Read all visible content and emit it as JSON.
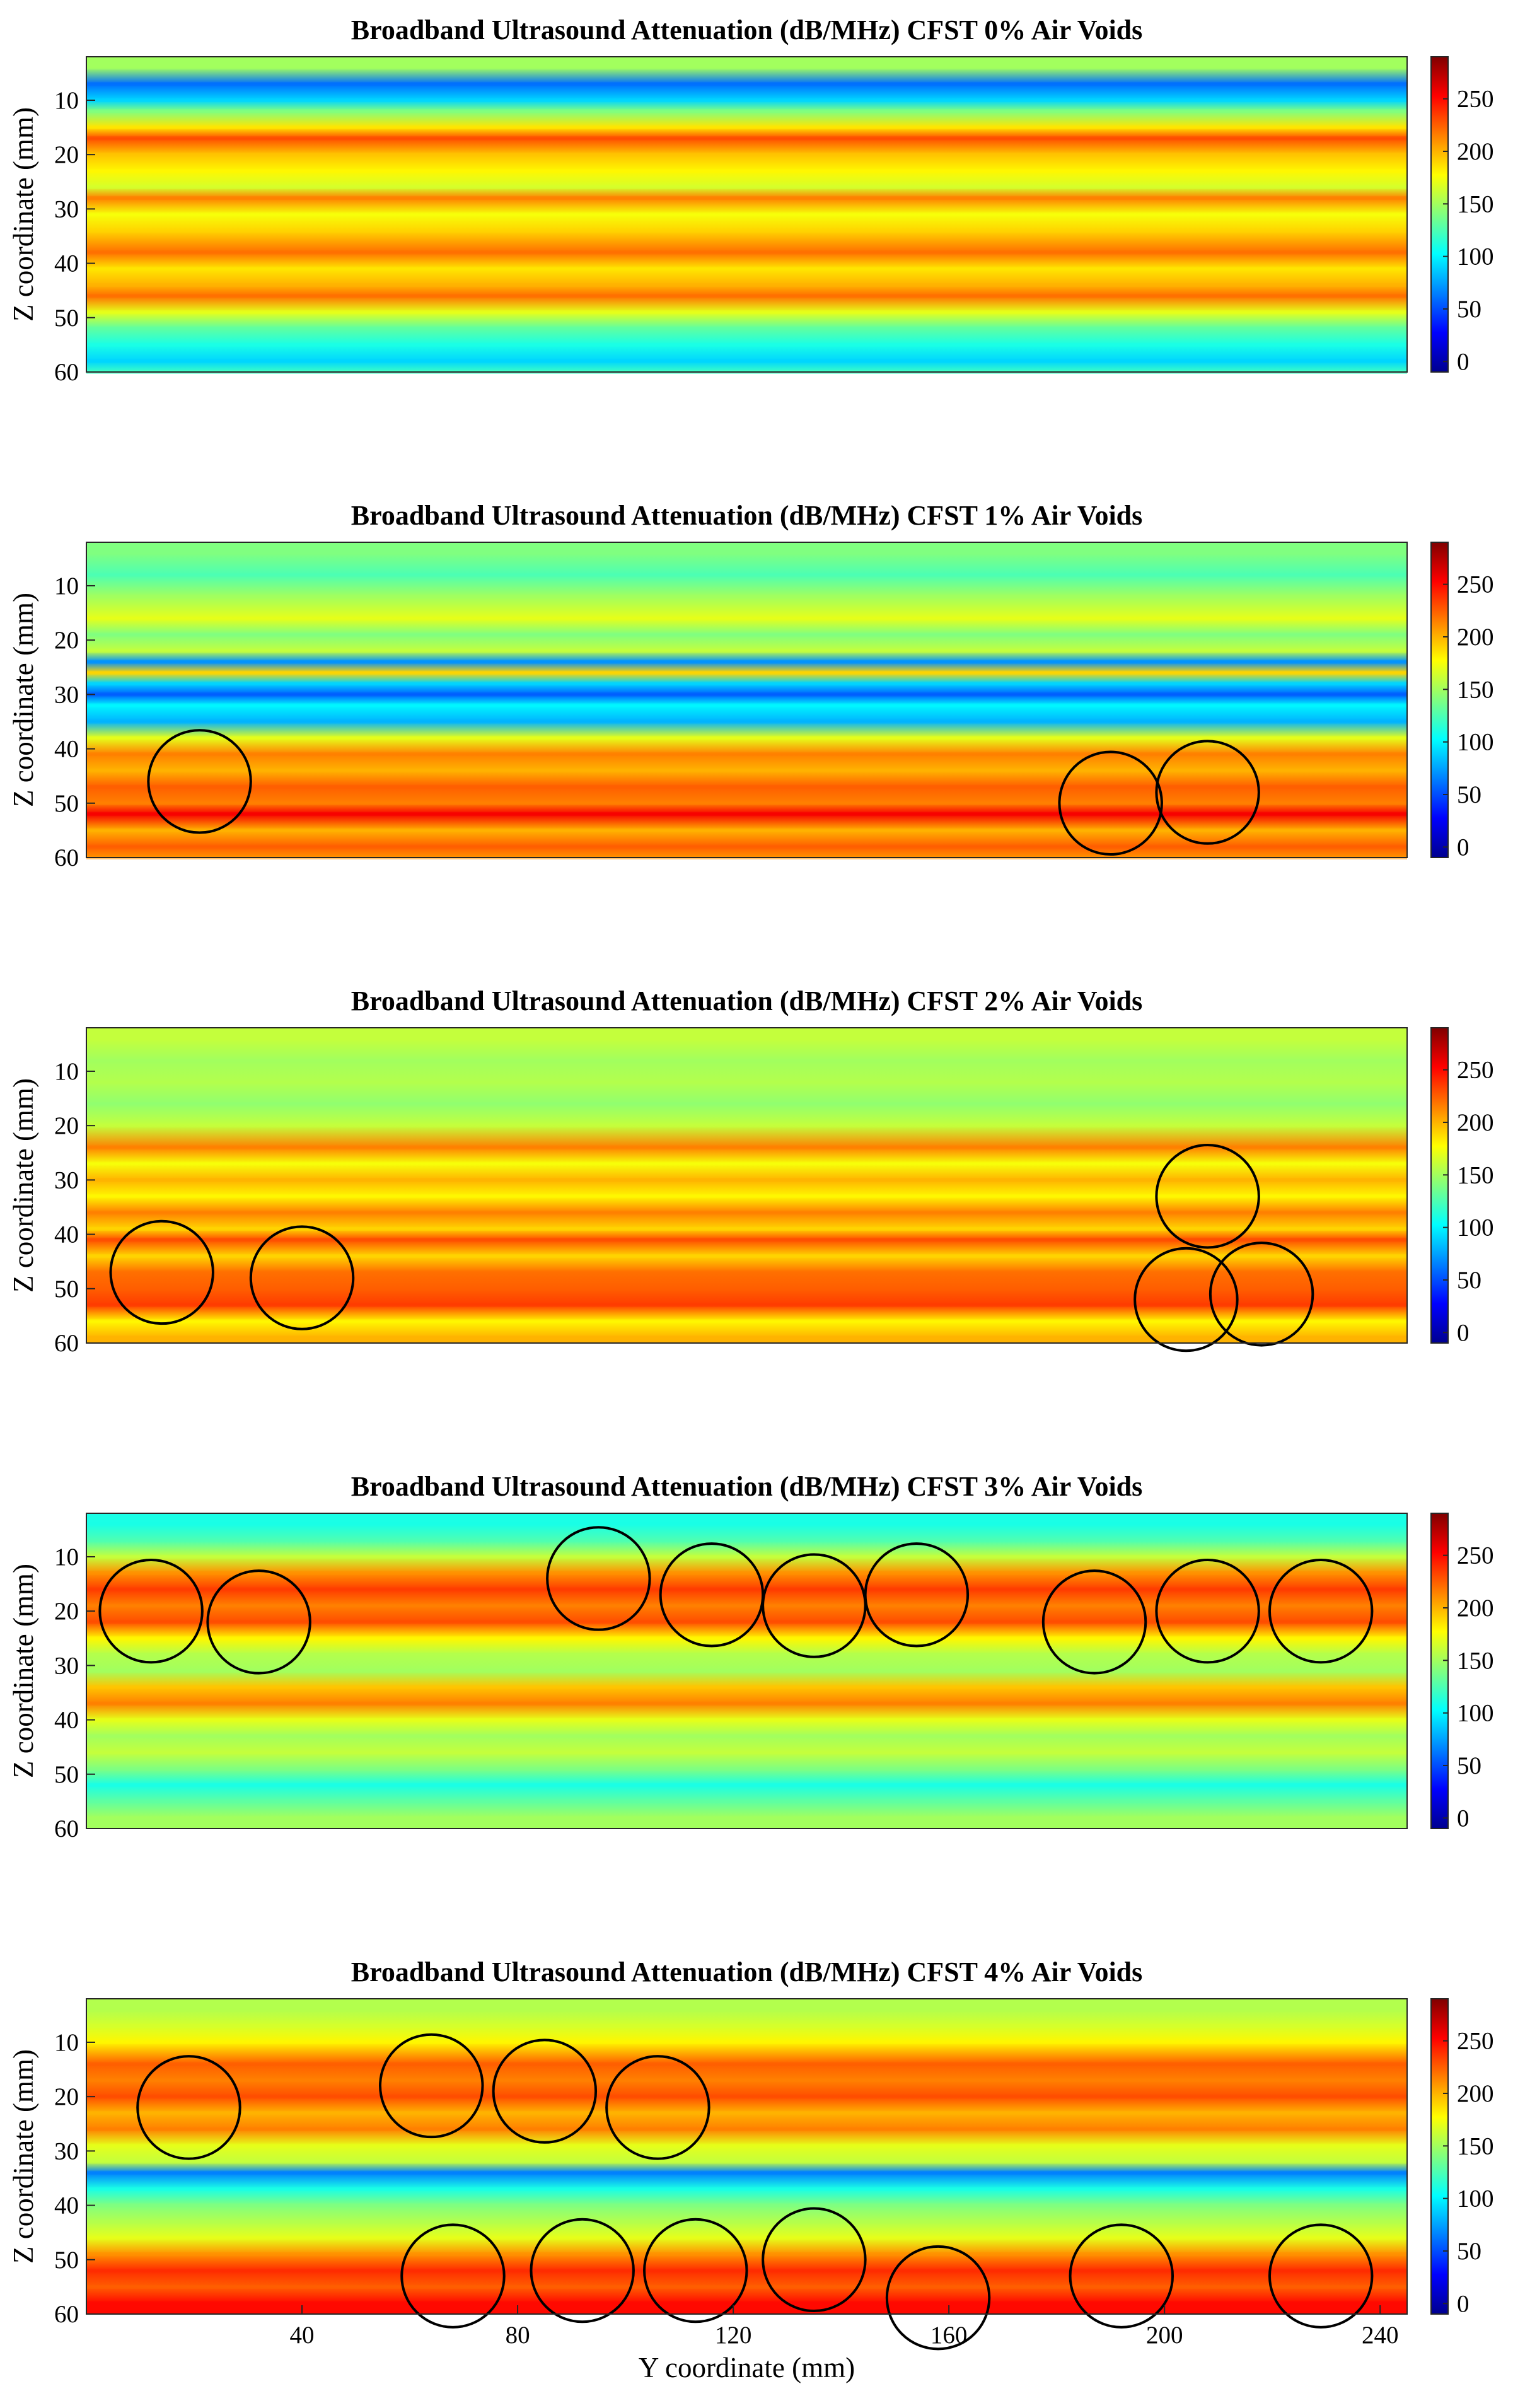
{
  "colormap": [
    "#00008f",
    "#0000ff",
    "#0080ff",
    "#00ffff",
    "#80ff80",
    "#ffff00",
    "#ff8000",
    "#ff0000",
    "#800000"
  ],
  "chart_data": [
    {
      "type": "heatmap",
      "title": "Broadband Ultrasound Attenuation (dB/MHz) CFST 0% Air Voids",
      "xlabel": "",
      "ylabel": "Z coordinate (mm)",
      "xlim": [
        0,
        245
      ],
      "ylim": [
        60,
        2
      ],
      "xticks": [],
      "yticks": [
        10,
        20,
        30,
        40,
        50,
        60
      ],
      "colorbar": {
        "range": [
          -10,
          290
        ],
        "ticks": [
          0,
          50,
          100,
          150,
          200,
          250
        ]
      },
      "bands": [
        {
          "z": 4,
          "value": 150
        },
        {
          "z": 7,
          "value": 60
        },
        {
          "z": 10,
          "value": 90
        },
        {
          "z": 12,
          "value": 140
        },
        {
          "z": 15,
          "value": 185
        },
        {
          "z": 17,
          "value": 230
        },
        {
          "z": 20,
          "value": 195
        },
        {
          "z": 23,
          "value": 180
        },
        {
          "z": 26,
          "value": 165
        },
        {
          "z": 28,
          "value": 215
        },
        {
          "z": 31,
          "value": 175
        },
        {
          "z": 34,
          "value": 190
        },
        {
          "z": 38,
          "value": 220
        },
        {
          "z": 41,
          "value": 185
        },
        {
          "z": 44,
          "value": 200
        },
        {
          "z": 46,
          "value": 220
        },
        {
          "z": 49,
          "value": 170
        },
        {
          "z": 52,
          "value": 130
        },
        {
          "z": 55,
          "value": 110
        },
        {
          "z": 58,
          "value": 90
        },
        {
          "z": 60,
          "value": 120
        }
      ],
      "circles": []
    },
    {
      "type": "heatmap",
      "title": "Broadband Ultrasound Attenuation (dB/MHz) CFST 1% Air Voids",
      "xlabel": "",
      "ylabel": "Z coordinate (mm)",
      "xlim": [
        0,
        245
      ],
      "ylim": [
        60,
        2
      ],
      "xticks": [],
      "yticks": [
        10,
        20,
        30,
        40,
        50,
        60
      ],
      "colorbar": {
        "range": [
          -10,
          290
        ],
        "ticks": [
          0,
          50,
          100,
          150,
          200,
          250
        ]
      },
      "bands": [
        {
          "z": 4,
          "value": 140
        },
        {
          "z": 8,
          "value": 125
        },
        {
          "z": 12,
          "value": 150
        },
        {
          "z": 16,
          "value": 170
        },
        {
          "z": 19,
          "value": 140
        },
        {
          "z": 22,
          "value": 160
        },
        {
          "z": 24,
          "value": 70
        },
        {
          "z": 26,
          "value": 190
        },
        {
          "z": 28,
          "value": 90
        },
        {
          "z": 30,
          "value": 55
        },
        {
          "z": 32,
          "value": 100
        },
        {
          "z": 35,
          "value": 80
        },
        {
          "z": 38,
          "value": 170
        },
        {
          "z": 41,
          "value": 215
        },
        {
          "z": 44,
          "value": 200
        },
        {
          "z": 47,
          "value": 225
        },
        {
          "z": 50,
          "value": 215
        },
        {
          "z": 52,
          "value": 255
        },
        {
          "z": 55,
          "value": 200
        },
        {
          "z": 58,
          "value": 225
        },
        {
          "z": 60,
          "value": 210
        }
      ],
      "circles": [
        {
          "y": 21,
          "z": 46,
          "r": 9.5
        },
        {
          "y": 190,
          "z": 50,
          "r": 9.5
        },
        {
          "y": 208,
          "z": 48,
          "r": 9.5
        }
      ]
    },
    {
      "type": "heatmap",
      "title": "Broadband Ultrasound Attenuation (dB/MHz) CFST 2% Air Voids",
      "xlabel": "",
      "ylabel": "Z coordinate (mm)",
      "xlim": [
        0,
        245
      ],
      "ylim": [
        60,
        2
      ],
      "xticks": [],
      "yticks": [
        10,
        20,
        30,
        40,
        50,
        60
      ],
      "colorbar": {
        "range": [
          -10,
          290
        ],
        "ticks": [
          0,
          50,
          100,
          150,
          200,
          250
        ]
      },
      "bands": [
        {
          "z": 4,
          "value": 160
        },
        {
          "z": 8,
          "value": 150
        },
        {
          "z": 12,
          "value": 155
        },
        {
          "z": 16,
          "value": 145
        },
        {
          "z": 20,
          "value": 160
        },
        {
          "z": 24,
          "value": 215
        },
        {
          "z": 27,
          "value": 175
        },
        {
          "z": 30,
          "value": 200
        },
        {
          "z": 33,
          "value": 180
        },
        {
          "z": 36,
          "value": 215
        },
        {
          "z": 39,
          "value": 190
        },
        {
          "z": 41,
          "value": 230
        },
        {
          "z": 44,
          "value": 190
        },
        {
          "z": 47,
          "value": 220
        },
        {
          "z": 50,
          "value": 225
        },
        {
          "z": 53,
          "value": 235
        },
        {
          "z": 56,
          "value": 180
        },
        {
          "z": 59,
          "value": 200
        }
      ],
      "circles": [
        {
          "y": 14,
          "z": 47,
          "r": 9.5
        },
        {
          "y": 40,
          "z": 48,
          "r": 9.5
        },
        {
          "y": 208,
          "z": 33,
          "r": 9.5
        },
        {
          "y": 204,
          "z": 52,
          "r": 9.5
        },
        {
          "y": 218,
          "z": 51,
          "r": 9.5
        }
      ]
    },
    {
      "type": "heatmap",
      "title": "Broadband Ultrasound Attenuation (dB/MHz) CFST 3% Air Voids",
      "xlabel": "",
      "ylabel": "Z coordinate (mm)",
      "xlim": [
        0,
        245
      ],
      "ylim": [
        60,
        2
      ],
      "xticks": [],
      "yticks": [
        10,
        20,
        30,
        40,
        50,
        60
      ],
      "colorbar": {
        "range": [
          -10,
          290
        ],
        "ticks": [
          0,
          50,
          100,
          150,
          200,
          250
        ]
      },
      "bands": [
        {
          "z": 4,
          "value": 110
        },
        {
          "z": 7,
          "value": 125
        },
        {
          "z": 10,
          "value": 160
        },
        {
          "z": 13,
          "value": 210
        },
        {
          "z": 16,
          "value": 235
        },
        {
          "z": 19,
          "value": 215
        },
        {
          "z": 22,
          "value": 230
        },
        {
          "z": 25,
          "value": 180
        },
        {
          "z": 28,
          "value": 155
        },
        {
          "z": 31,
          "value": 150
        },
        {
          "z": 34,
          "value": 195
        },
        {
          "z": 37,
          "value": 215
        },
        {
          "z": 40,
          "value": 170
        },
        {
          "z": 43,
          "value": 150
        },
        {
          "z": 46,
          "value": 160
        },
        {
          "z": 49,
          "value": 140
        },
        {
          "z": 52,
          "value": 110
        },
        {
          "z": 55,
          "value": 130
        },
        {
          "z": 58,
          "value": 150
        }
      ],
      "circles": [
        {
          "y": 12,
          "z": 20,
          "r": 9.5
        },
        {
          "y": 32,
          "z": 22,
          "r": 9.5
        },
        {
          "y": 95,
          "z": 14,
          "r": 9.5
        },
        {
          "y": 116,
          "z": 17,
          "r": 9.5
        },
        {
          "y": 135,
          "z": 19,
          "r": 9.5
        },
        {
          "y": 154,
          "z": 17,
          "r": 9.5
        },
        {
          "y": 187,
          "z": 22,
          "r": 9.5
        },
        {
          "y": 208,
          "z": 20,
          "r": 9.5
        },
        {
          "y": 229,
          "z": 20,
          "r": 9.5
        }
      ]
    },
    {
      "type": "heatmap",
      "title": "Broadband Ultrasound Attenuation (dB/MHz) CFST 4% Air Voids",
      "xlabel": "Y coordinate (mm)",
      "ylabel": "Z coordinate (mm)",
      "xlim": [
        0,
        245
      ],
      "ylim": [
        60,
        2
      ],
      "xticks": [
        40,
        80,
        120,
        160,
        200,
        240
      ],
      "yticks": [
        10,
        20,
        30,
        40,
        50,
        60
      ],
      "colorbar": {
        "range": [
          -10,
          290
        ],
        "ticks": [
          0,
          50,
          100,
          150,
          200,
          250
        ]
      },
      "bands": [
        {
          "z": 4,
          "value": 155
        },
        {
          "z": 7,
          "value": 165
        },
        {
          "z": 10,
          "value": 180
        },
        {
          "z": 14,
          "value": 225
        },
        {
          "z": 17,
          "value": 215
        },
        {
          "z": 20,
          "value": 230
        },
        {
          "z": 23,
          "value": 200
        },
        {
          "z": 26,
          "value": 215
        },
        {
          "z": 29,
          "value": 170
        },
        {
          "z": 32,
          "value": 160
        },
        {
          "z": 34,
          "value": 65
        },
        {
          "z": 37,
          "value": 110
        },
        {
          "z": 40,
          "value": 140
        },
        {
          "z": 43,
          "value": 155
        },
        {
          "z": 46,
          "value": 170
        },
        {
          "z": 49,
          "value": 210
        },
        {
          "z": 52,
          "value": 240
        },
        {
          "z": 55,
          "value": 225
        },
        {
          "z": 58,
          "value": 250
        }
      ],
      "circles": [
        {
          "y": 19,
          "z": 22,
          "r": 9.5
        },
        {
          "y": 64,
          "z": 18,
          "r": 9.5
        },
        {
          "y": 85,
          "z": 19,
          "r": 9.5
        },
        {
          "y": 106,
          "z": 22,
          "r": 9.5
        },
        {
          "y": 68,
          "z": 53,
          "r": 9.5
        },
        {
          "y": 92,
          "z": 52,
          "r": 9.5
        },
        {
          "y": 113,
          "z": 52,
          "r": 9.5
        },
        {
          "y": 135,
          "z": 50,
          "r": 9.5
        },
        {
          "y": 158,
          "z": 57,
          "r": 9.5
        },
        {
          "y": 192,
          "z": 53,
          "r": 9.5
        },
        {
          "y": 229,
          "z": 53,
          "r": 9.5
        }
      ]
    }
  ]
}
